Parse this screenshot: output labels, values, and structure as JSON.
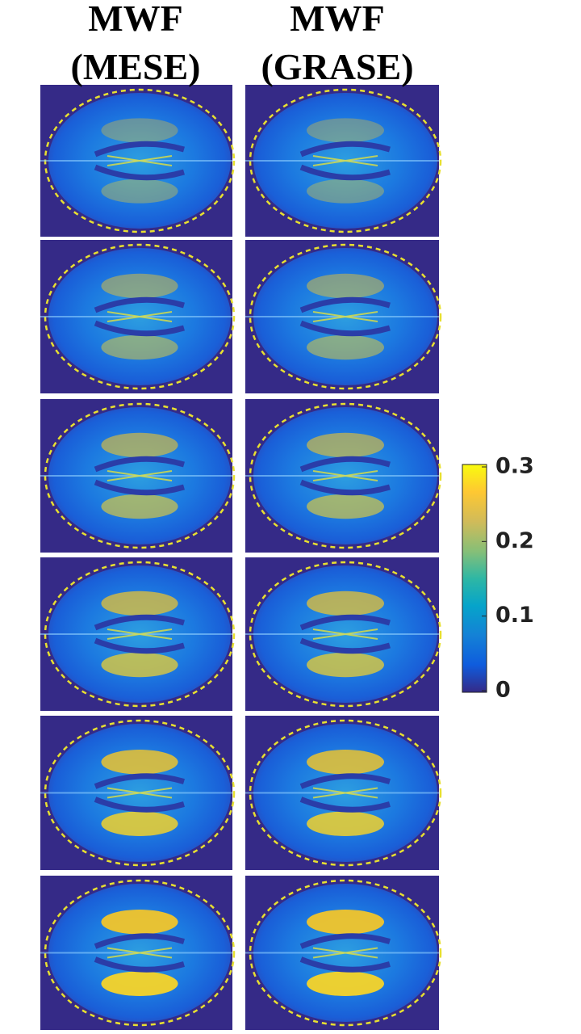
{
  "columns": [
    {
      "title_lines": [
        "MWF",
        "(MESE)"
      ]
    },
    {
      "title_lines": [
        "MWF",
        "(GRASE)"
      ]
    }
  ],
  "colorbar": {
    "range": [
      0,
      0.3
    ],
    "ticks": [
      0,
      0.1,
      0.2,
      0.3
    ]
  }
}
